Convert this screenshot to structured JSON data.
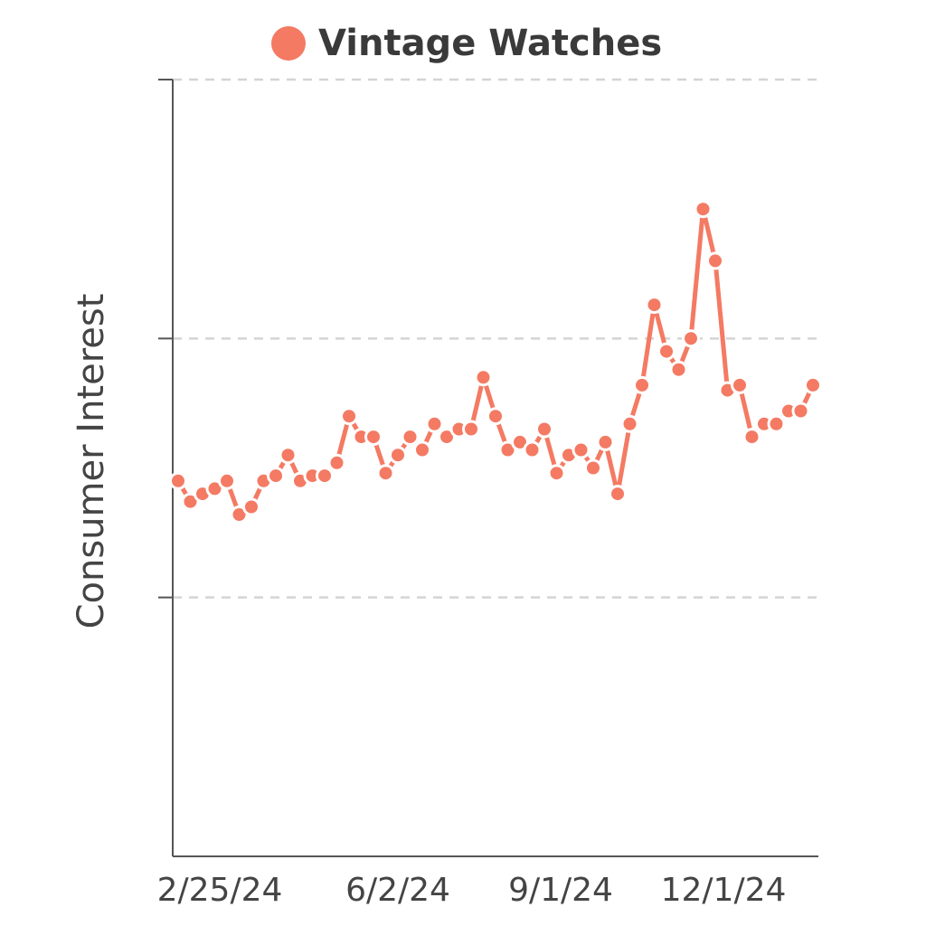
{
  "legend": {
    "label": "Vintage Watches",
    "color": "#f47a63"
  },
  "chart_data": {
    "type": "line",
    "title": "",
    "xlabel": "",
    "ylabel": "Consumer Interest",
    "legend_position": "top-center",
    "grid": "horizontal-dashed",
    "x_tick_labels": [
      "2/25/24",
      "6/2/24",
      "9/1/24",
      "12/1/24"
    ],
    "ylim": [
      0,
      300
    ],
    "y_ticks": [
      100,
      200,
      300
    ],
    "y_tick_labels_shown": false,
    "series": [
      {
        "name": "Vintage Watches",
        "color": "#f47a63",
        "values": [
          145,
          137,
          140,
          142,
          145,
          132,
          135,
          145,
          147,
          155,
          145,
          147,
          147,
          152,
          170,
          162,
          162,
          148,
          155,
          162,
          157,
          167,
          162,
          165,
          165,
          185,
          170,
          157,
          160,
          157,
          165,
          148,
          155,
          157,
          150,
          160,
          140,
          167,
          182,
          213,
          195,
          188,
          200,
          250,
          230,
          180,
          182,
          162,
          167,
          167,
          172,
          172,
          182
        ]
      }
    ]
  }
}
